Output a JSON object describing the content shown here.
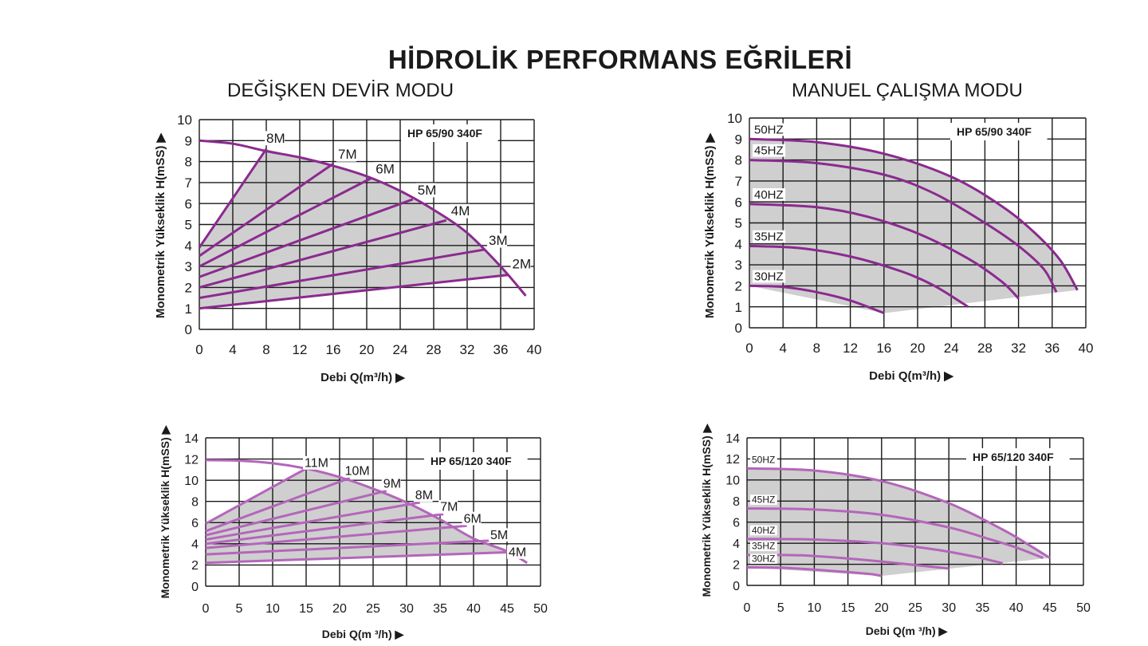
{
  "title": "HİDROLİK PERFORMANS EĞRİLERİ",
  "modes": {
    "left": "DEĞİŞKEN DEVİR MODU",
    "right": "MANUEL ÇALIŞMA MODU"
  },
  "colors": {
    "curve": "#8b2a8f",
    "curve_light": "#b466bb",
    "fill": "#cfcfcf",
    "grid": "#1a1a1a"
  },
  "chart_data": [
    {
      "type": "line",
      "model": "HP 65/90 340F",
      "xlabel": "Debi Q(m³/h) ▶",
      "ylabel": "Monometrik Yükseklik H(mSS) ▶",
      "xlim": [
        0,
        40
      ],
      "ylim": [
        0,
        10
      ],
      "xticks": [
        0,
        4,
        8,
        12,
        16,
        20,
        24,
        28,
        32,
        36,
        40
      ],
      "yticks": [
        0,
        1,
        2,
        3,
        4,
        5,
        6,
        7,
        8,
        9,
        10
      ],
      "envelope": {
        "x": [
          0,
          4,
          8,
          12,
          16,
          20,
          24,
          28,
          32,
          36,
          39
        ],
        "y": [
          9,
          8.85,
          8.5,
          8.2,
          7.8,
          7.3,
          6.6,
          5.7,
          4.6,
          3.0,
          1.6
        ]
      },
      "series": [
        {
          "name": "8M",
          "x": [
            0,
            8
          ],
          "y": [
            3.9,
            8.6
          ]
        },
        {
          "name": "7M",
          "x": [
            0,
            16
          ],
          "y": [
            3.5,
            7.9
          ]
        },
        {
          "name": "6M",
          "x": [
            0,
            20.5
          ],
          "y": [
            3.0,
            7.2
          ]
        },
        {
          "name": "5M",
          "x": [
            0,
            25.5
          ],
          "y": [
            2.5,
            6.2
          ]
        },
        {
          "name": "4M",
          "x": [
            0,
            29.5
          ],
          "y": [
            2.0,
            5.2
          ]
        },
        {
          "name": "3M",
          "x": [
            0,
            34
          ],
          "y": [
            1.5,
            3.8
          ]
        },
        {
          "name": "2M",
          "x": [
            0,
            37
          ],
          "y": [
            1.0,
            2.6
          ]
        }
      ]
    },
    {
      "type": "line",
      "model": "HP 65/90 340F",
      "xlabel": "Debi Q(m³/h) ▶",
      "ylabel": "Monometrik Yükseklik H(mSS) ▶",
      "xlim": [
        0,
        40
      ],
      "ylim": [
        0,
        10
      ],
      "xticks": [
        0,
        4,
        8,
        12,
        16,
        20,
        24,
        28,
        32,
        36,
        40
      ],
      "yticks": [
        0,
        1,
        2,
        3,
        4,
        5,
        6,
        7,
        8,
        9,
        10
      ],
      "series": [
        {
          "name": "50HZ",
          "x": [
            0,
            8,
            16,
            24,
            30,
            34,
            37,
            39
          ],
          "y": [
            9.0,
            8.85,
            8.3,
            7.2,
            5.8,
            4.5,
            3.2,
            1.8
          ]
        },
        {
          "name": "45HZ",
          "x": [
            0,
            8,
            16,
            22,
            28,
            32,
            35,
            36.5
          ],
          "y": [
            8.0,
            7.85,
            7.3,
            6.4,
            5.0,
            3.9,
            2.8,
            1.7
          ]
        },
        {
          "name": "40HZ",
          "x": [
            0,
            8,
            14,
            20,
            26,
            30,
            32
          ],
          "y": [
            5.9,
            5.75,
            5.3,
            4.5,
            3.3,
            2.2,
            1.4
          ]
        },
        {
          "name": "35HZ",
          "x": [
            0,
            6,
            12,
            18,
            22,
            26
          ],
          "y": [
            3.9,
            3.8,
            3.4,
            2.7,
            2.0,
            1.0
          ]
        },
        {
          "name": "30HZ",
          "x": [
            0,
            4,
            8,
            12,
            16
          ],
          "y": [
            2.0,
            1.95,
            1.7,
            1.3,
            0.7
          ]
        }
      ]
    },
    {
      "type": "line",
      "model": "HP 65/120 340F",
      "xlabel": "Debi Q(m ³/h) ▶",
      "ylabel": "Monometrik Yükseklik H(mSS) ▶",
      "xlim": [
        0,
        50
      ],
      "ylim": [
        0,
        14
      ],
      "xticks": [
        0,
        5,
        10,
        15,
        20,
        25,
        30,
        35,
        40,
        45,
        50
      ],
      "yticks": [
        0,
        2,
        4,
        6,
        8,
        10,
        12,
        14
      ],
      "envelope": {
        "x": [
          0,
          5,
          10,
          15,
          20,
          25,
          30,
          35,
          40,
          45,
          48
        ],
        "y": [
          11.9,
          11.85,
          11.6,
          11.1,
          10.3,
          9.2,
          7.9,
          6.3,
          4.5,
          3.3,
          2.2
        ]
      },
      "series": [
        {
          "name": "11M",
          "x": [
            0,
            15
          ],
          "y": [
            5.9,
            11.1
          ]
        },
        {
          "name": "10M",
          "x": [
            0,
            21.5
          ],
          "y": [
            5.2,
            10.2
          ]
        },
        {
          "name": "9M",
          "x": [
            0,
            27
          ],
          "y": [
            4.8,
            9.0
          ]
        },
        {
          "name": "8M",
          "x": [
            0,
            32
          ],
          "y": [
            4.4,
            7.9
          ]
        },
        {
          "name": "7M",
          "x": [
            0,
            35.5
          ],
          "y": [
            4.0,
            6.8
          ]
        },
        {
          "name": "6M",
          "x": [
            0,
            39
          ],
          "y": [
            3.6,
            5.7
          ]
        },
        {
          "name": "5M",
          "x": [
            0,
            42.5
          ],
          "y": [
            3.0,
            4.3
          ]
        },
        {
          "name": "4M",
          "x": [
            0,
            45
          ],
          "y": [
            2.2,
            3.2
          ]
        }
      ]
    },
    {
      "type": "line",
      "model": "HP 65/120 340F",
      "xlabel": "Debi Q(m ³/h) ▶",
      "ylabel": "Monometrik Yükseklik H(mSS) ▶",
      "xlim": [
        0,
        50
      ],
      "ylim": [
        0,
        14
      ],
      "xticks": [
        0,
        5,
        10,
        15,
        20,
        25,
        30,
        35,
        40,
        45,
        50
      ],
      "yticks": [
        0,
        2,
        4,
        6,
        8,
        10,
        12,
        14
      ],
      "series": [
        {
          "name": "50HZ",
          "x": [
            0,
            10,
            20,
            30,
            38,
            42,
            45
          ],
          "y": [
            11.1,
            10.9,
            9.9,
            7.8,
            5.3,
            3.8,
            2.6
          ]
        },
        {
          "name": "45HZ",
          "x": [
            0,
            10,
            20,
            30,
            36,
            40,
            44
          ],
          "y": [
            7.3,
            7.2,
            6.7,
            5.5,
            4.4,
            3.6,
            2.6
          ]
        },
        {
          "name": "40HZ",
          "x": [
            0,
            10,
            20,
            28,
            34,
            38
          ],
          "y": [
            4.4,
            4.35,
            4.0,
            3.4,
            2.7,
            2.1
          ]
        },
        {
          "name": "35HZ",
          "x": [
            0,
            8,
            16,
            24,
            30
          ],
          "y": [
            2.9,
            2.85,
            2.5,
            2.0,
            1.6
          ]
        },
        {
          "name": "30HZ",
          "x": [
            0,
            6,
            12,
            18,
            20
          ],
          "y": [
            1.7,
            1.65,
            1.4,
            1.1,
            0.9
          ]
        }
      ]
    }
  ]
}
